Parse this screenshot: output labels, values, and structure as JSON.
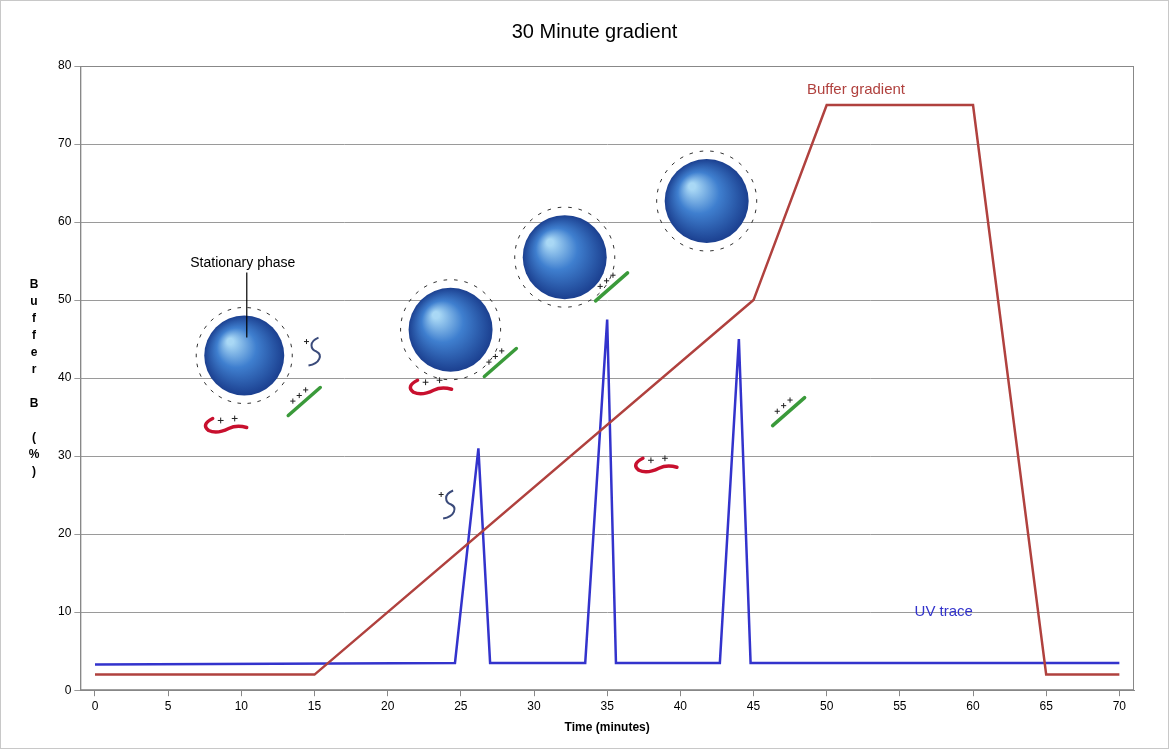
{
  "chart_data": {
    "type": "line",
    "title": "30 Minute gradient",
    "x_label": "Time (minutes)",
    "y_label": "Buffer B (%)",
    "annotations": [
      {
        "text": "Stationary phase"
      }
    ],
    "xlim": [
      -1,
      71
    ],
    "xticks": [
      0,
      5,
      10,
      15,
      20,
      25,
      30,
      35,
      40,
      45,
      50,
      55,
      60,
      65,
      70
    ],
    "ylim": [
      0,
      80
    ],
    "yticks": [
      0,
      10,
      20,
      30,
      40,
      50,
      60,
      70,
      80
    ],
    "grid": true,
    "series": [
      {
        "name": "Buffer gradient",
        "color": "#b0413e",
        "x": [
          0,
          15,
          45,
          50,
          60,
          65,
          70
        ],
        "values": [
          2,
          2,
          50,
          75,
          75,
          2,
          2
        ]
      },
      {
        "name": "UV trace",
        "color": "#3333cc",
        "x": [
          0,
          24.6,
          26.2,
          27,
          33.5,
          35,
          35.6,
          42.7,
          44,
          44.8,
          70
        ],
        "values": [
          3.3,
          3.5,
          31,
          3.5,
          3.5,
          47.5,
          3.5,
          3.5,
          45,
          3.5,
          3.5
        ]
      }
    ]
  }
}
